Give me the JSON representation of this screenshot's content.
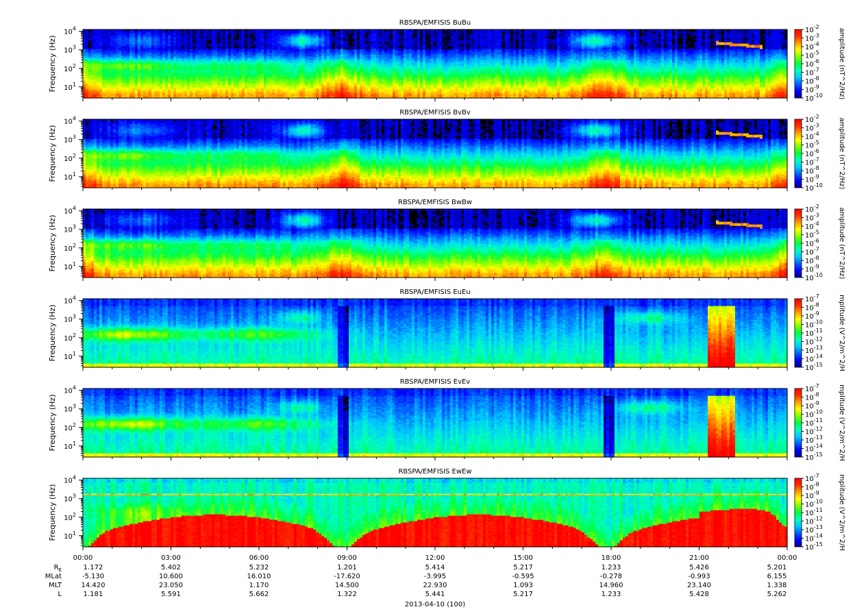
{
  "chart_data": {
    "type": "heatmap",
    "date_label": "2013-04-10 (100)",
    "x_ticks": [
      "00:00",
      "03:00",
      "06:00",
      "09:00",
      "12:00",
      "15:00",
      "18:00",
      "21:00",
      "00:00"
    ],
    "ephemeris": [
      {
        "label": "R",
        "sub": "E",
        "values": [
          "1.172",
          "5.402",
          "5.232",
          "1.201",
          "5.414",
          "5.217",
          "1.233",
          "5.426",
          "5.201"
        ]
      },
      {
        "label": "MLat",
        "sub": "",
        "values": [
          "-5.130",
          "10.600",
          "16.010",
          "-17.620",
          "-3.995",
          "-0.595",
          "-0.278",
          "-0.993",
          "6.155"
        ]
      },
      {
        "label": "MLT",
        "sub": "",
        "values": [
          "14.420",
          "23.050",
          "1.170",
          "14.500",
          "22.930",
          "1.093",
          "14.960",
          "23.140",
          "1.338"
        ]
      },
      {
        "label": "L",
        "sub": "",
        "values": [
          "1.181",
          "5.591",
          "5.662",
          "1.322",
          "5.441",
          "5.217",
          "1.233",
          "5.428",
          "5.262"
        ]
      }
    ],
    "panels": [
      {
        "title": "RBSPA/EMFISIS  BuBu",
        "ylabel": "Frequency (Hz)",
        "y_exponents": [
          "1",
          "2",
          "3",
          "4"
        ],
        "yscale": "log",
        "cbar_label": "amplitude (nT^2/Hz)",
        "cbar_exponents": [
          "-2",
          "-3",
          "-4",
          "-5",
          "-6",
          "-7",
          "-8",
          "-9",
          "-10"
        ],
        "kind": "B"
      },
      {
        "title": "RBSPA/EMFISIS  BvBv",
        "ylabel": "Frequency (Hz)",
        "y_exponents": [
          "1",
          "2",
          "3",
          "4"
        ],
        "yscale": "log",
        "cbar_label": "amplitude (nT^2/Hz)",
        "cbar_exponents": [
          "-2",
          "-3",
          "-4",
          "-5",
          "-6",
          "-7",
          "-8",
          "-9",
          "-10"
        ],
        "kind": "B"
      },
      {
        "title": "RBSPA/EMFISIS  BwBw",
        "ylabel": "Frequency (Hz)",
        "y_exponents": [
          "1",
          "2",
          "3",
          "4"
        ],
        "yscale": "log",
        "cbar_label": "amplitude (nT^2/Hz)",
        "cbar_exponents": [
          "-2",
          "-3",
          "-4",
          "-5",
          "-6",
          "-7",
          "-8",
          "-9",
          "-10"
        ],
        "kind": "B"
      },
      {
        "title": "RBSPA/EMFISIS  EuEu",
        "ylabel": "Frequency (Hz)",
        "y_exponents": [
          "1",
          "2",
          "3",
          "4"
        ],
        "yscale": "log",
        "cbar_label": "mplitude (V^2/m^2/H",
        "cbar_exponents": [
          "-7",
          "-8",
          "-9",
          "-10",
          "-11",
          "-12",
          "-13",
          "-14",
          "-15"
        ],
        "kind": "E"
      },
      {
        "title": "RBSPA/EMFISIS  EvEv",
        "ylabel": "Frequency (Hz)",
        "y_exponents": [
          "1",
          "2",
          "3",
          "4"
        ],
        "yscale": "log",
        "cbar_label": "mplitude (V^2/m^2/H",
        "cbar_exponents": [
          "-7",
          "-8",
          "-9",
          "-10",
          "-11",
          "-12",
          "-13",
          "-14",
          "-15"
        ],
        "kind": "E"
      },
      {
        "title": "RBSPA/EMFISIS  EwEw",
        "ylabel": "Frequency (Hz)",
        "y_exponents": [
          "1",
          "2",
          "3",
          "4"
        ],
        "yscale": "log",
        "cbar_label": "mplitude (V^2/m^2/H",
        "cbar_exponents": [
          "-7",
          "-8",
          "-9",
          "-10",
          "-11",
          "-12",
          "-13",
          "-14",
          "-15"
        ],
        "kind": "Ew"
      }
    ],
    "colormap": [
      "#00008b",
      "#0000ff",
      "#0060ff",
      "#00c8ff",
      "#00ffc0",
      "#00ff40",
      "#80ff00",
      "#ffff00",
      "#ffa000",
      "#ff3000",
      "#ff0000"
    ]
  }
}
